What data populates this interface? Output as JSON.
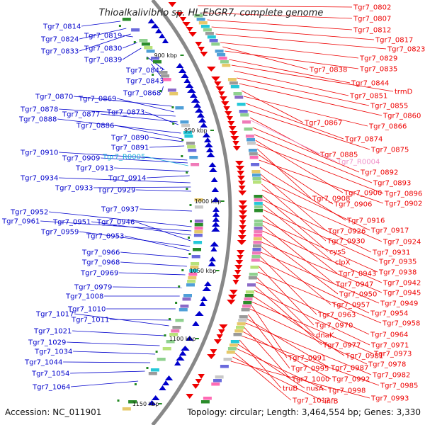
{
  "title": "Thioalkalivibrio sp. HL-EbGR7, complete genome",
  "footer": {
    "accession": "Accession: NC_011901",
    "summary": "Topology: circular; Length: 3,464,554 bp; Genes: 3,330"
  },
  "colors": {
    "reverse_strand": "#0000cc",
    "forward_strand": "#ee0000",
    "rna_reverse": "#1ab0d8",
    "rna_forward": "#f090c8",
    "backbone": "#888888",
    "tick": "#228822"
  },
  "scale_ticks": [
    "900 kbp",
    "950 kbp",
    "1000 kbp",
    "1050 kbp",
    "1100 kbp",
    "1150 kbp"
  ],
  "left_genes": [
    "Tgr7_0814",
    "Tgr7_0824",
    "Tgr7_0833",
    "Tgr7_0819",
    "Tgr7_0830",
    "Tgr7_0839",
    "Tgr7_0842",
    "Tgr7_0843",
    "Tgr7_0868",
    "Tgr7_0870",
    "Tgr7_0869",
    "Tgr7_0878",
    "Tgr7_0877",
    "Tgr7_0873",
    "Tgr7_0888",
    "Tgr7_0886",
    "Tgr7_0890",
    "Tgr7_0891",
    "Tgr7_0910",
    "Tgr7_0909",
    "Tgr7_R0005",
    "Tgr7_0913",
    "Tgr7_0914",
    "Tgr7_0934",
    "Tgr7_0933",
    "Tgr7_0929",
    "Tgr7_0937",
    "Tgr7_0952",
    "Tgr7_0961",
    "Tgr7_0951",
    "Tgr7_0946",
    "Tgr7_0959",
    "Tgr7_0953",
    "Tgr7_0966",
    "Tgr7_0968",
    "Tgr7_0969",
    "Tgr7_0979",
    "Tgr7_1008",
    "Tgr7_1010",
    "Tgr7_1011",
    "Tgr7_1017",
    "Tgr7_1021",
    "Tgr7_1029",
    "Tgr7_1034",
    "Tgr7_1044",
    "Tgr7_1054",
    "Tgr7_1064"
  ],
  "right_genes": [
    "Tgr7_0802",
    "Tgr7_0807",
    "Tgr7_0812",
    "Tgr7_0817",
    "Tgr7_0823",
    "Tgr7_0829",
    "Tgr7_0838",
    "Tgr7_0835",
    "Tgr7_0844",
    "trmD",
    "Tgr7_0851",
    "Tgr7_0855",
    "Tgr7_0860",
    "Tgr7_0867",
    "Tgr7_0866",
    "Tgr7_0874",
    "Tgr7_0875",
    "Tgr7_0885",
    "Tgr7_R0004",
    "Tgr7_0892",
    "Tgr7_0893",
    "Tgr7_0900",
    "Tgr7_0896",
    "Tgr7_0908",
    "Tgr7_0906",
    "Tgr7_0902",
    "Tgr7_0916",
    "Tgr7_0926",
    "Tgr7_0917",
    "Tgr7_0930",
    "Tgr7_0924",
    "cysS",
    "Tgr7_0931",
    "clpX",
    "Tgr7_0935",
    "Tgr7_0943",
    "Tgr7_0938",
    "Tgr7_0947",
    "Tgr7_0942",
    "Tgr7_0950",
    "Tgr7_0945",
    "Tgr7_0957",
    "Tgr7_0949",
    "Tgr7_0963",
    "Tgr7_0954",
    "Tgr7_0970",
    "Tgr7_0958",
    "dnaK",
    "Tgr7_0964",
    "Tgr7_0977",
    "Tgr7_0971",
    "Tgr7_0981",
    "Tgr7_0973",
    "Tgr7_0991",
    "Tgr7_0978",
    "Tgr7_0995",
    "Tgr7_0987",
    "Tgr7_0982",
    "Tgr7_1000",
    "Tgr7_0992",
    "Tgr7_0985",
    "truB",
    "nusA",
    "Tgr7_0998",
    "Tgr7_1012",
    "infB",
    "Tgr7_0993"
  ]
}
